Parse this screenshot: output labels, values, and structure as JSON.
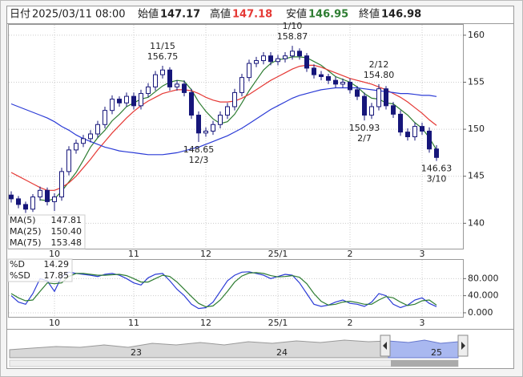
{
  "header": {
    "date_label": "日付",
    "date": "2025/03/11 08:00",
    "open_label": "始値",
    "open": 147.17,
    "high_label": "高値",
    "high": 147.18,
    "low_label": "安値",
    "low": 146.95,
    "close_label": "終値",
    "close": 146.98
  },
  "chart_data": [
    {
      "type": "candlestick",
      "color": "#16167a",
      "grid": true,
      "categories": [
        null,
        null,
        null,
        null,
        null,
        null,
        "10",
        null,
        null,
        null,
        null,
        null,
        null,
        null,
        null,
        null,
        null,
        "11",
        null,
        null,
        null,
        null,
        null,
        null,
        null,
        null,
        null,
        "12",
        null,
        null,
        null,
        null,
        null,
        null,
        null,
        null,
        null,
        "25/1",
        null,
        null,
        null,
        null,
        null,
        null,
        null,
        null,
        null,
        "2",
        null,
        null,
        null,
        null,
        null,
        null,
        null,
        null,
        null,
        "3",
        null,
        null
      ],
      "open": [
        143.0,
        142.6,
        142.0,
        141.5,
        142.8,
        143.5,
        142.3,
        142.8,
        145.5,
        147.8,
        148.5,
        149.0,
        149.5,
        150.5,
        152.0,
        153.2,
        152.8,
        153.5,
        152.5,
        153.8,
        154.5,
        155.8,
        156.3,
        154.5,
        154.8,
        153.9,
        151.5,
        149.6,
        149.8,
        150.5,
        151.5,
        152.4,
        153.9,
        155.5,
        157.0,
        157.3,
        157.8,
        157.2,
        157.5,
        157.8,
        158.3,
        157.8,
        156.5,
        155.8,
        155.6,
        155.2,
        154.8,
        155.0,
        154.2,
        153.5,
        151.5,
        152.4,
        154.3,
        152.5,
        151.6,
        149.7,
        149.2,
        150.3,
        149.8,
        147.9
      ],
      "high": [
        143.4,
        142.9,
        142.3,
        143.1,
        143.9,
        143.8,
        143.2,
        145.9,
        148.2,
        148.9,
        149.4,
        149.9,
        150.9,
        152.4,
        153.6,
        153.5,
        153.9,
        153.9,
        154.2,
        154.9,
        156.2,
        156.75,
        156.6,
        155.2,
        155.2,
        154.3,
        151.9,
        150.2,
        150.9,
        151.9,
        152.8,
        154.3,
        155.9,
        157.4,
        157.7,
        158.2,
        158.2,
        157.9,
        158.2,
        158.87,
        158.6,
        158.1,
        156.9,
        156.2,
        155.9,
        155.6,
        155.4,
        155.4,
        154.6,
        153.9,
        152.8,
        154.8,
        154.6,
        152.9,
        152.0,
        150.1,
        150.7,
        150.7,
        150.2,
        148.3
      ],
      "low": [
        142.2,
        141.6,
        141.1,
        141.2,
        142.4,
        141.9,
        141.3,
        142.4,
        145.1,
        147.4,
        148.1,
        148.6,
        149.1,
        150.1,
        151.6,
        152.4,
        152.4,
        152.1,
        152.1,
        153.4,
        154.1,
        155.4,
        154.1,
        154.1,
        153.5,
        151.1,
        148.65,
        149.2,
        149.4,
        150.1,
        151.1,
        152.0,
        153.5,
        155.1,
        156.6,
        156.9,
        156.8,
        156.8,
        157.1,
        157.4,
        157.4,
        156.1,
        155.4,
        155.2,
        154.8,
        154.4,
        154.4,
        153.8,
        153.1,
        150.93,
        151.1,
        152.0,
        152.1,
        151.2,
        149.3,
        148.8,
        148.8,
        149.4,
        147.5,
        146.63
      ],
      "close": [
        142.6,
        142.0,
        141.5,
        142.8,
        143.5,
        142.3,
        142.8,
        145.5,
        147.8,
        148.5,
        149.0,
        149.5,
        150.5,
        152.0,
        153.2,
        152.8,
        153.5,
        152.5,
        153.8,
        154.5,
        155.8,
        156.3,
        154.5,
        154.8,
        153.9,
        151.5,
        149.6,
        149.8,
        150.5,
        151.5,
        152.4,
        153.9,
        155.5,
        157.0,
        157.3,
        157.8,
        157.2,
        157.5,
        157.8,
        158.3,
        157.8,
        156.5,
        155.8,
        155.6,
        155.2,
        154.8,
        155.0,
        154.2,
        153.5,
        151.5,
        152.4,
        154.3,
        152.5,
        151.6,
        149.7,
        149.2,
        150.3,
        149.8,
        147.9,
        147.0
      ],
      "series": [
        {
          "name": "MA(5)",
          "color": "#2e7d32",
          "values": [
            null,
            null,
            null,
            null,
            142.5,
            142.4,
            142.6,
            143.4,
            144.4,
            145.4,
            146.7,
            148.1,
            149.1,
            149.9,
            150.9,
            151.6,
            152.4,
            152.8,
            153.2,
            153.4,
            154.0,
            154.6,
            155.0,
            155.2,
            155.1,
            154.2,
            152.9,
            151.9,
            151.1,
            150.6,
            150.8,
            151.6,
            152.8,
            154.1,
            155.2,
            156.3,
            157.0,
            157.4,
            157.5,
            157.7,
            157.7,
            157.6,
            157.2,
            156.8,
            156.2,
            155.6,
            155.3,
            155.0,
            154.5,
            153.8,
            153.3,
            153.2,
            152.8,
            152.7,
            152.1,
            151.5,
            150.7,
            150.1,
            149.1,
            147.81
          ]
        },
        {
          "name": "MA(25)",
          "color": "#e53935",
          "values": [
            145.4,
            145.0,
            144.6,
            144.2,
            143.8,
            143.5,
            143.5,
            143.8,
            144.3,
            145.0,
            145.9,
            146.8,
            147.8,
            148.7,
            149.6,
            150.4,
            151.2,
            151.9,
            152.5,
            153.0,
            153.4,
            153.8,
            154.0,
            154.2,
            154.2,
            154.1,
            153.8,
            153.4,
            153.1,
            152.9,
            152.9,
            153.0,
            153.3,
            153.7,
            154.2,
            154.7,
            155.2,
            155.6,
            156.0,
            156.4,
            156.7,
            156.8,
            156.8,
            156.6,
            156.3,
            156.0,
            155.7,
            155.4,
            155.2,
            155.0,
            154.8,
            154.5,
            154.2,
            153.8,
            153.4,
            152.9,
            152.3,
            151.7,
            151.0,
            150.4
          ],
          "value_labels": {
            "59": "150.40"
          }
        },
        {
          "name": "MA(75)",
          "color": "#2b3bd6",
          "values": [
            152.7,
            152.4,
            152.1,
            151.8,
            151.5,
            151.2,
            150.8,
            150.3,
            149.9,
            149.4,
            149.0,
            148.7,
            148.4,
            148.1,
            147.9,
            147.7,
            147.6,
            147.5,
            147.4,
            147.3,
            147.3,
            147.3,
            147.4,
            147.5,
            147.7,
            147.9,
            148.1,
            148.4,
            148.7,
            149.0,
            149.3,
            149.7,
            150.1,
            150.6,
            151.1,
            151.6,
            152.1,
            152.5,
            152.9,
            153.3,
            153.6,
            153.8,
            154.0,
            154.2,
            154.3,
            154.4,
            154.4,
            154.4,
            154.4,
            154.3,
            154.2,
            154.1,
            154.0,
            153.9,
            153.8,
            153.8,
            153.7,
            153.6,
            153.6,
            153.48
          ]
        }
      ],
      "annotations": [
        {
          "date": "11/15",
          "value": 156.75
        },
        {
          "date": "12/3",
          "value": 148.65
        },
        {
          "date": "1/10",
          "value": 158.87
        },
        {
          "date": "2/12",
          "value": {
            "value": 154.8,
            "label": "154.80"
          }
        },
        {
          "date": "2/7",
          "value": 150.93
        },
        {
          "date": "3/10",
          "value": 146.63
        }
      ],
      "ylim": [
        137.3,
        161.1
      ],
      "yticks": [
        140,
        145,
        150,
        155,
        160
      ]
    },
    {
      "type": "line",
      "grid": true,
      "categories": [
        null,
        null,
        null,
        null,
        null,
        null,
        "10",
        null,
        null,
        null,
        null,
        null,
        null,
        null,
        null,
        null,
        null,
        "11",
        null,
        null,
        null,
        null,
        null,
        null,
        null,
        null,
        null,
        "12",
        null,
        null,
        null,
        null,
        null,
        null,
        null,
        null,
        null,
        "25/1",
        null,
        null,
        null,
        null,
        null,
        null,
        null,
        null,
        null,
        "2",
        null,
        null,
        null,
        null,
        null,
        null,
        null,
        null,
        null,
        "3",
        null,
        null
      ],
      "series": [
        {
          "name": "%D",
          "color": "#2b3bd6",
          "values": [
            40,
            25,
            20,
            45,
            80,
            75,
            50,
            85,
            95,
            92,
            90,
            88,
            85,
            90,
            92,
            88,
            80,
            70,
            65,
            82,
            90,
            92,
            75,
            55,
            40,
            20,
            10,
            12,
            25,
            50,
            75,
            88,
            95,
            96,
            92,
            88,
            80,
            85,
            90,
            88,
            70,
            45,
            20,
            15,
            18,
            25,
            30,
            22,
            20,
            15,
            25,
            45,
            40,
            20,
            12,
            18,
            30,
            35,
            22,
            14.29
          ]
        },
        {
          "name": "%SD",
          "color": "#2e7d32",
          "values": [
            45,
            35,
            28,
            30,
            50,
            70,
            68,
            70,
            85,
            92,
            92,
            90,
            88,
            88,
            89,
            90,
            87,
            80,
            72,
            72,
            80,
            88,
            85,
            72,
            55,
            38,
            22,
            14,
            16,
            30,
            50,
            72,
            86,
            93,
            94,
            92,
            87,
            84,
            85,
            87,
            83,
            68,
            45,
            27,
            18,
            20,
            25,
            27,
            24,
            20,
            20,
            30,
            38,
            35,
            25,
            17,
            20,
            28,
            30,
            17.85
          ]
        }
      ],
      "ylim": [
        -9.5,
        123.8
      ],
      "yticks": [
        {
          "value": 0,
          "label": "0.000"
        },
        {
          "value": 40,
          "label": "40.000"
        },
        {
          "value": 80,
          "label": "80.000"
        }
      ]
    }
  ],
  "navigator": {
    "labels": [
      "23",
      "24",
      "25"
    ]
  }
}
